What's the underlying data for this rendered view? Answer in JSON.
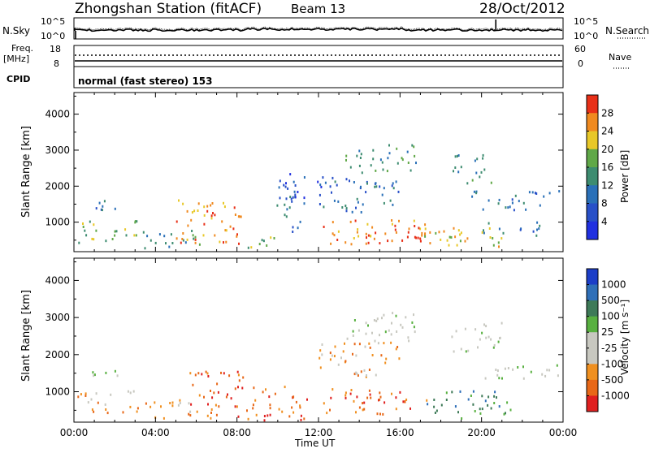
{
  "header": {
    "station": "Zhongshan Station (fitACF)",
    "beam": "Beam 13",
    "date": "28/Oct/2012"
  },
  "colors": {
    "power": [
      "#2036c8",
      "#2040d0",
      "#2a6fb0",
      "#3a8a68",
      "#6aa040",
      "#e8c020",
      "#f08020",
      "#e83010"
    ],
    "velocity": [
      "#1c3ec8",
      "#2f6fb8",
      "#3e7a58",
      "#58b040",
      "#c8c8c0",
      "#c8c8c0",
      "#f09020",
      "#e86818",
      "#e02020"
    ]
  },
  "chart_data": [
    {
      "type": "line",
      "panel": "noise",
      "left_label": "N.Sky",
      "right_label": "N.Search",
      "left_ticks": [
        "10^5",
        "10^0"
      ],
      "right_ticks": [
        "10^5",
        "10^0"
      ],
      "x_ticks": [
        "00:00",
        "04:00",
        "08:00",
        "12:00",
        "16:00",
        "20:00",
        "00:00"
      ],
      "xlim": [
        0,
        24
      ]
    },
    {
      "type": "line",
      "panel": "frequency",
      "left_label_lines": [
        "Freq.",
        "[MHz]"
      ],
      "right_label": "Nave",
      "left_ticks": [
        "18",
        "8"
      ],
      "right_ticks": [
        "60",
        "0"
      ],
      "xlim": [
        0,
        24
      ]
    },
    {
      "type": "text",
      "panel": "cpid",
      "label": "CPID",
      "text": "normal (fast stereo) 153"
    },
    {
      "type": "heatmap",
      "panel": "power",
      "ylabel": "Slant Range [km]",
      "y_ticks": [
        1000,
        2000,
        3000,
        4000
      ],
      "ylim": [
        180,
        4600
      ],
      "xlim": [
        0,
        24
      ],
      "colorbar_label": "Power [dB]",
      "colorbar_ticks": [
        "28",
        "24",
        "20",
        "16",
        "12",
        "8",
        "4"
      ],
      "bands": [
        {
          "t0": 0.1,
          "t1": 3.2,
          "r0": 450,
          "r1": 1100,
          "level": 4
        },
        {
          "t0": 0.2,
          "t1": 2.2,
          "r0": 1350,
          "r1": 1650,
          "level": 2
        },
        {
          "t0": 3.3,
          "t1": 6.5,
          "r0": 300,
          "r1": 800,
          "level": 3
        },
        {
          "t0": 5.0,
          "t1": 8.3,
          "r0": 400,
          "r1": 1700,
          "level": 6
        },
        {
          "t0": 8.3,
          "t1": 10.2,
          "r0": 300,
          "r1": 700,
          "level": 4
        },
        {
          "t0": 9.9,
          "t1": 11.1,
          "r0": 700,
          "r1": 1800,
          "level": 2
        },
        {
          "t0": 10.0,
          "t1": 12.2,
          "r0": 1500,
          "r1": 2400,
          "level": 1
        },
        {
          "t0": 12.2,
          "t1": 17.4,
          "r0": 400,
          "r1": 1100,
          "level": 6
        },
        {
          "t0": 14.0,
          "t1": 17.2,
          "r0": 500,
          "r1": 900,
          "level": 7
        },
        {
          "t0": 13.3,
          "t1": 16.8,
          "r0": 2400,
          "r1": 3200,
          "level": 3
        },
        {
          "t0": 12.0,
          "t1": 16.0,
          "r0": 1300,
          "r1": 2300,
          "level": 2
        },
        {
          "t0": 17.0,
          "t1": 21.0,
          "r0": 350,
          "r1": 1000,
          "level": 5
        },
        {
          "t0": 18.5,
          "t1": 20.5,
          "r0": 2100,
          "r1": 2900,
          "level": 3
        },
        {
          "t0": 19.5,
          "t1": 23.8,
          "r0": 1350,
          "r1": 1900,
          "level": 2
        },
        {
          "t0": 20.0,
          "t1": 23.0,
          "r0": 650,
          "r1": 1050,
          "level": 2
        }
      ]
    },
    {
      "type": "heatmap",
      "panel": "velocity",
      "ylabel": "Slant Range [km]",
      "y_ticks": [
        1000,
        2000,
        3000,
        4000
      ],
      "ylim": [
        180,
        4600
      ],
      "xlim": [
        0,
        24
      ],
      "xlabel": "Time UT",
      "x_ticks": [
        "00:00",
        "04:00",
        "08:00",
        "12:00",
        "16:00",
        "20:00",
        "00:00"
      ],
      "colorbar_label": "Velocity [m s⁻¹]",
      "colorbar_ticks": [
        "1000",
        "500",
        "100",
        "25",
        "-25",
        "-100",
        "-500",
        "-1000"
      ],
      "bands": [
        {
          "t0": 0.1,
          "t1": 3.2,
          "r0": 450,
          "r1": 1050,
          "level": 6
        },
        {
          "t0": 0.3,
          "t1": 2.2,
          "r0": 1350,
          "r1": 1650,
          "level": 4
        },
        {
          "t0": 3.3,
          "t1": 6.0,
          "r0": 300,
          "r1": 800,
          "level": 6
        },
        {
          "t0": 5.5,
          "t1": 8.5,
          "r0": 300,
          "r1": 1600,
          "level": 7
        },
        {
          "t0": 8.5,
          "t1": 11.5,
          "r0": 250,
          "r1": 1200,
          "level": 7
        },
        {
          "t0": 12.0,
          "t1": 16.0,
          "r0": 1400,
          "r1": 2400,
          "level": 6
        },
        {
          "t0": 13.3,
          "t1": 16.8,
          "r0": 2400,
          "r1": 3200,
          "level": 4
        },
        {
          "t0": 12.2,
          "t1": 17.3,
          "r0": 400,
          "r1": 1100,
          "level": 7
        },
        {
          "t0": 17.3,
          "t1": 21.5,
          "r0": 300,
          "r1": 1050,
          "level": 2
        },
        {
          "t0": 18.5,
          "t1": 21.0,
          "r0": 2100,
          "r1": 2900,
          "level": 4
        },
        {
          "t0": 20.0,
          "t1": 23.8,
          "r0": 1350,
          "r1": 1800,
          "level": 4
        }
      ]
    }
  ]
}
